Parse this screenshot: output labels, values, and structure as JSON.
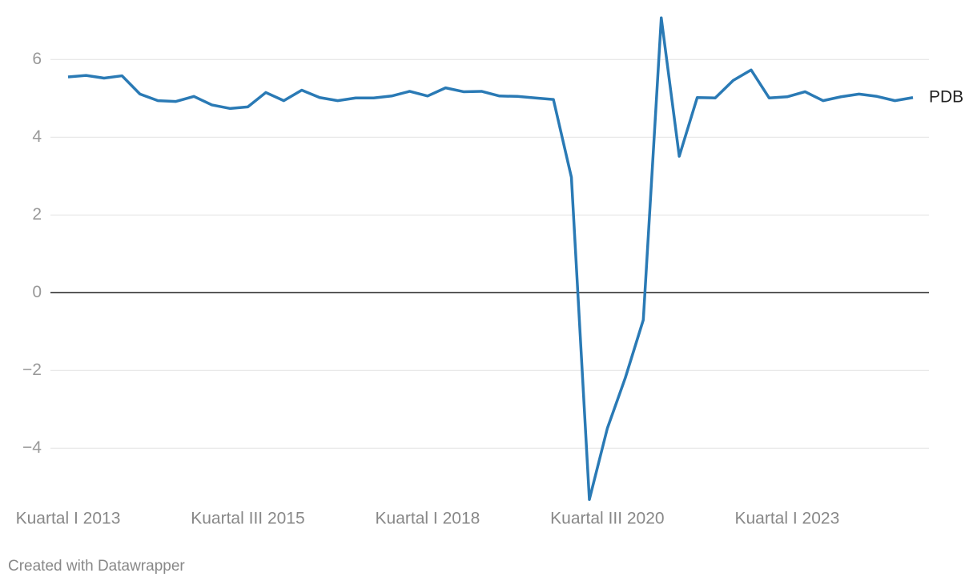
{
  "chart_data": {
    "type": "line",
    "categories": [
      "Kuartal I 2013",
      null,
      null,
      null,
      null,
      null,
      null,
      null,
      null,
      null,
      "Kuartal III 2015",
      null,
      null,
      null,
      null,
      null,
      null,
      null,
      null,
      null,
      "Kuartal I 2018",
      null,
      null,
      null,
      null,
      null,
      null,
      null,
      null,
      null,
      "Kuartal III 2020",
      null,
      null,
      null,
      null,
      null,
      null,
      null,
      null,
      null,
      "Kuartal I 2023",
      null,
      null,
      null,
      null,
      null,
      null,
      null
    ],
    "series": [
      {
        "name": "PDB",
        "color": "#2a7ab5",
        "values": [
          5.55,
          5.59,
          5.52,
          5.58,
          5.11,
          4.94,
          4.92,
          5.05,
          4.83,
          4.74,
          4.78,
          5.15,
          4.94,
          5.21,
          5.02,
          4.94,
          5.01,
          5.01,
          5.06,
          5.18,
          5.06,
          5.27,
          5.17,
          5.18,
          5.06,
          5.05,
          5.01,
          4.97,
          2.97,
          -5.32,
          -3.49,
          -2.19,
          -0.7,
          7.07,
          3.51,
          5.02,
          5.01,
          5.46,
          5.73,
          5.01,
          5.04,
          5.17,
          4.94,
          5.04,
          5.11,
          5.05,
          4.94,
          5.02
        ]
      }
    ],
    "ylim": [
      -5.5,
      7.2
    ],
    "yticks": [
      {
        "value": -4,
        "label": "−4"
      },
      {
        "value": -2,
        "label": "−2"
      },
      0,
      2,
      4,
      6
    ],
    "grid": true,
    "footer": "Created with Datawrapper"
  }
}
